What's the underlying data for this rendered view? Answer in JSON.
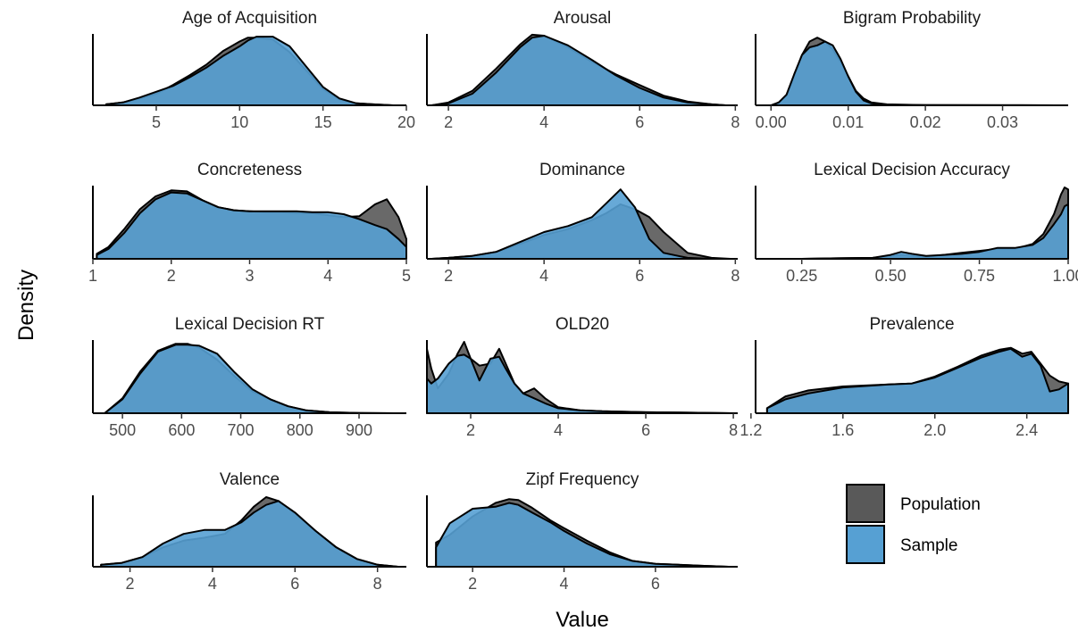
{
  "chart_data": {
    "type": "area",
    "kind": "faceted density plot",
    "xlabel": "Value",
    "ylabel": "Density",
    "legend": {
      "placement": "bottom-right",
      "entries": [
        {
          "name": "Population",
          "color": "#595959"
        },
        {
          "name": "Sample",
          "color": "#56a0d3"
        }
      ]
    },
    "series_colors": {
      "Population": "#595959",
      "Sample": "#56a0d3"
    },
    "series_opacity": 0.9,
    "facets": [
      {
        "title": "Age of Acquisition",
        "xlim": [
          1.2,
          20
        ],
        "ticks": [
          5,
          10,
          15,
          20
        ],
        "tick_labels": [
          "5",
          "10",
          "15",
          "20"
        ],
        "population": {
          "x": [
            2,
            3,
            4,
            5,
            6,
            7,
            8,
            9,
            10,
            10.5,
            11,
            12,
            13,
            14,
            15,
            16,
            17,
            18,
            19.2
          ],
          "y": [
            0.01,
            0.03,
            0.07,
            0.12,
            0.21,
            0.31,
            0.42,
            0.56,
            0.66,
            0.7,
            0.7,
            0.68,
            0.55,
            0.36,
            0.17,
            0.06,
            0.02,
            0.01,
            0.0
          ]
        },
        "sample": {
          "x": [
            2,
            3,
            4,
            5,
            6,
            7,
            8,
            9,
            10,
            10.5,
            11,
            12,
            13,
            14,
            15,
            16,
            17,
            18,
            19.2
          ],
          "y": [
            0.01,
            0.03,
            0.08,
            0.14,
            0.2,
            0.29,
            0.39,
            0.51,
            0.61,
            0.67,
            0.71,
            0.71,
            0.61,
            0.4,
            0.19,
            0.07,
            0.02,
            0.01,
            0.0
          ]
        }
      },
      {
        "title": "Arousal",
        "xlim": [
          1.55,
          8.05
        ],
        "ticks": [
          2,
          4,
          6,
          8
        ],
        "tick_labels": [
          "2",
          "4",
          "6",
          "8"
        ],
        "population": {
          "x": [
            1.65,
            2.0,
            2.5,
            3.0,
            3.5,
            3.75,
            4.0,
            4.5,
            5.0,
            5.5,
            6.0,
            6.5,
            7.0,
            7.5,
            7.8
          ],
          "y": [
            0.0,
            0.03,
            0.15,
            0.38,
            0.63,
            0.73,
            0.72,
            0.6,
            0.45,
            0.32,
            0.21,
            0.1,
            0.04,
            0.01,
            0.0
          ]
        },
        "sample": {
          "x": [
            1.65,
            2.0,
            2.5,
            3.0,
            3.5,
            3.75,
            4.0,
            4.5,
            5.0,
            5.5,
            6.0,
            6.5,
            7.0,
            7.5,
            7.8
          ],
          "y": [
            0.0,
            0.02,
            0.12,
            0.34,
            0.6,
            0.7,
            0.72,
            0.62,
            0.47,
            0.31,
            0.18,
            0.08,
            0.03,
            0.01,
            0.0
          ]
        }
      },
      {
        "title": "Bigram Probability",
        "xlim": [
          -0.002,
          0.0385
        ],
        "ticks": [
          0.0,
          0.01,
          0.02,
          0.03
        ],
        "tick_labels": [
          "0.00",
          "0.01",
          "0.02",
          "0.03"
        ],
        "population": {
          "x": [
            0.0,
            0.001,
            0.002,
            0.003,
            0.004,
            0.005,
            0.006,
            0.007,
            0.008,
            0.009,
            0.01,
            0.011,
            0.012,
            0.013,
            0.015,
            0.02,
            0.03,
            0.037
          ],
          "y": [
            0.0,
            0.03,
            0.1,
            0.3,
            0.52,
            0.66,
            0.7,
            0.66,
            0.58,
            0.45,
            0.3,
            0.15,
            0.07,
            0.03,
            0.01,
            0.003,
            0.001,
            0.0
          ]
        },
        "sample": {
          "x": [
            0.0,
            0.001,
            0.002,
            0.003,
            0.004,
            0.005,
            0.006,
            0.007,
            0.008,
            0.009,
            0.01,
            0.011,
            0.012,
            0.013,
            0.015,
            0.02,
            0.03,
            0.037
          ],
          "y": [
            0.0,
            0.03,
            0.11,
            0.32,
            0.52,
            0.6,
            0.62,
            0.66,
            0.62,
            0.48,
            0.3,
            0.14,
            0.05,
            0.02,
            0.005,
            0.002,
            0.001,
            0.0
          ]
        }
      },
      {
        "title": "Concreteness",
        "xlim": [
          1.0,
          5.0
        ],
        "ticks": [
          1,
          2,
          3,
          4,
          5
        ],
        "tick_labels": [
          "1",
          "2",
          "3",
          "4",
          "5"
        ],
        "population": {
          "x": [
            1.05,
            1.2,
            1.4,
            1.6,
            1.8,
            2.0,
            2.2,
            2.4,
            2.6,
            2.8,
            3.0,
            3.2,
            3.4,
            3.6,
            3.8,
            4.0,
            4.2,
            4.4,
            4.6,
            4.75,
            4.9,
            5.0
          ],
          "y": [
            0.05,
            0.12,
            0.3,
            0.5,
            0.63,
            0.69,
            0.68,
            0.59,
            0.52,
            0.49,
            0.48,
            0.47,
            0.47,
            0.46,
            0.46,
            0.44,
            0.42,
            0.43,
            0.55,
            0.6,
            0.42,
            0.2
          ]
        },
        "sample": {
          "x": [
            1.05,
            1.2,
            1.4,
            1.6,
            1.8,
            2.0,
            2.2,
            2.4,
            2.6,
            2.8,
            3.0,
            3.2,
            3.4,
            3.6,
            3.8,
            4.0,
            4.2,
            4.4,
            4.6,
            4.75,
            4.9,
            5.0
          ],
          "y": [
            0.04,
            0.1,
            0.26,
            0.46,
            0.6,
            0.67,
            0.66,
            0.59,
            0.52,
            0.49,
            0.48,
            0.48,
            0.48,
            0.48,
            0.47,
            0.47,
            0.45,
            0.4,
            0.34,
            0.3,
            0.2,
            0.12
          ]
        }
      },
      {
        "title": "Dominance",
        "xlim": [
          1.55,
          8.05
        ],
        "ticks": [
          2,
          4,
          6,
          8
        ],
        "tick_labels": [
          "2",
          "4",
          "6",
          "8"
        ],
        "population": {
          "x": [
            1.65,
            2.0,
            2.5,
            3.0,
            3.5,
            4.0,
            4.5,
            5.0,
            5.3,
            5.6,
            5.9,
            6.2,
            6.5,
            7.0,
            7.5,
            7.9
          ],
          "y": [
            0.0,
            0.01,
            0.03,
            0.07,
            0.15,
            0.24,
            0.3,
            0.39,
            0.46,
            0.55,
            0.5,
            0.42,
            0.27,
            0.06,
            0.01,
            0.0
          ]
        },
        "sample": {
          "x": [
            1.65,
            2.0,
            2.5,
            3.0,
            3.5,
            4.0,
            4.5,
            5.0,
            5.3,
            5.6,
            5.9,
            6.2,
            6.5,
            7.0,
            7.5,
            7.9
          ],
          "y": [
            0.0,
            0.01,
            0.03,
            0.07,
            0.17,
            0.27,
            0.33,
            0.42,
            0.56,
            0.7,
            0.52,
            0.2,
            0.06,
            0.01,
            0.0,
            0.0
          ]
        }
      },
      {
        "title": "Lexical Decision Accuracy",
        "xlim": [
          0.12,
          1.0
        ],
        "ticks": [
          0.25,
          0.5,
          0.75,
          1.0
        ],
        "tick_labels": [
          "0.25",
          "0.50",
          "0.75",
          "1.00"
        ],
        "population": {
          "x": [
            0.16,
            0.25,
            0.35,
            0.45,
            0.5,
            0.53,
            0.56,
            0.6,
            0.65,
            0.7,
            0.75,
            0.8,
            0.85,
            0.9,
            0.93,
            0.96,
            0.98,
            0.99,
            1.0
          ],
          "y": [
            0.0,
            0.0,
            0.005,
            0.01,
            0.03,
            0.04,
            0.03,
            0.02,
            0.04,
            0.06,
            0.08,
            0.1,
            0.1,
            0.15,
            0.25,
            0.45,
            0.65,
            0.72,
            0.7
          ]
        },
        "sample": {
          "x": [
            0.16,
            0.25,
            0.35,
            0.45,
            0.5,
            0.53,
            0.56,
            0.6,
            0.65,
            0.7,
            0.75,
            0.8,
            0.85,
            0.9,
            0.93,
            0.96,
            0.98,
            0.99,
            1.0
          ],
          "y": [
            0.0,
            0.0,
            0.005,
            0.01,
            0.04,
            0.07,
            0.05,
            0.03,
            0.04,
            0.05,
            0.07,
            0.11,
            0.11,
            0.14,
            0.21,
            0.35,
            0.45,
            0.53,
            0.55
          ]
        }
      },
      {
        "title": "Lexical Decision RT",
        "xlim": [
          450,
          980
        ],
        "ticks": [
          500,
          600,
          700,
          800,
          900
        ],
        "tick_labels": [
          "500",
          "600",
          "700",
          "800",
          "900"
        ],
        "population": {
          "x": [
            470,
            500,
            530,
            560,
            590,
            610,
            630,
            660,
            690,
            720,
            750,
            780,
            810,
            850,
            900,
            960
          ],
          "y": [
            0.0,
            0.15,
            0.42,
            0.63,
            0.7,
            0.7,
            0.66,
            0.54,
            0.37,
            0.22,
            0.14,
            0.07,
            0.03,
            0.01,
            0.003,
            0.0
          ]
        },
        "sample": {
          "x": [
            470,
            500,
            530,
            560,
            590,
            610,
            630,
            660,
            690,
            720,
            750,
            780,
            810,
            850,
            900,
            960
          ],
          "y": [
            0.0,
            0.14,
            0.4,
            0.62,
            0.69,
            0.69,
            0.68,
            0.6,
            0.41,
            0.24,
            0.14,
            0.07,
            0.03,
            0.01,
            0.003,
            0.0
          ]
        }
      },
      {
        "title": "OLD20",
        "xlim": [
          1.0,
          8.1
        ],
        "ticks": [
          2,
          4,
          6,
          8
        ],
        "tick_labels": [
          "2",
          "4",
          "6",
          "8"
        ],
        "population": {
          "x": [
            1.0,
            1.1,
            1.25,
            1.5,
            1.7,
            1.85,
            2.0,
            2.2,
            2.45,
            2.65,
            2.8,
            3.0,
            3.2,
            3.45,
            3.7,
            4.0,
            4.5,
            5.0,
            6.0,
            7.0,
            8.0
          ],
          "y": [
            0.65,
            0.45,
            0.25,
            0.4,
            0.6,
            0.72,
            0.55,
            0.48,
            0.5,
            0.65,
            0.5,
            0.3,
            0.2,
            0.25,
            0.15,
            0.06,
            0.03,
            0.02,
            0.01,
            0.005,
            0.0
          ]
        },
        "sample": {
          "x": [
            1.0,
            1.1,
            1.25,
            1.5,
            1.7,
            1.85,
            2.0,
            2.2,
            2.45,
            2.65,
            2.8,
            3.0,
            3.2,
            3.45,
            3.7,
            4.0,
            4.5,
            5.0,
            6.0,
            7.0,
            8.0
          ],
          "y": [
            0.35,
            0.3,
            0.35,
            0.5,
            0.58,
            0.59,
            0.55,
            0.33,
            0.55,
            0.57,
            0.45,
            0.3,
            0.2,
            0.15,
            0.1,
            0.05,
            0.03,
            0.02,
            0.01,
            0.005,
            0.0
          ]
        }
      },
      {
        "title": "Prevalence",
        "xlim": [
          1.22,
          2.58
        ],
        "ticks": [
          1.2,
          1.6,
          2.0,
          2.4
        ],
        "tick_labels": [
          "1.2",
          "1.6",
          "2.0",
          "2.4"
        ],
        "population": {
          "x": [
            1.27,
            1.35,
            1.45,
            1.6,
            1.8,
            1.9,
            2.0,
            2.1,
            2.2,
            2.28,
            2.33,
            2.38,
            2.42,
            2.46,
            2.5,
            2.54,
            2.58
          ],
          "y": [
            0.05,
            0.17,
            0.23,
            0.27,
            0.29,
            0.3,
            0.37,
            0.47,
            0.58,
            0.64,
            0.66,
            0.6,
            0.62,
            0.5,
            0.38,
            0.32,
            0.3
          ]
        },
        "sample": {
          "x": [
            1.27,
            1.35,
            1.45,
            1.6,
            1.8,
            1.9,
            2.0,
            2.1,
            2.2,
            2.28,
            2.33,
            2.38,
            2.42,
            2.46,
            2.5,
            2.54,
            2.58
          ],
          "y": [
            0.05,
            0.14,
            0.2,
            0.26,
            0.29,
            0.3,
            0.36,
            0.46,
            0.56,
            0.62,
            0.65,
            0.57,
            0.6,
            0.48,
            0.22,
            0.24,
            0.3
          ]
        }
      },
      {
        "title": "Valence",
        "xlim": [
          1.1,
          8.7
        ],
        "ticks": [
          2,
          4,
          6,
          8
        ],
        "tick_labels": [
          "2",
          "4",
          "6",
          "8"
        ],
        "population": {
          "x": [
            1.3,
            1.8,
            2.3,
            2.8,
            3.3,
            3.8,
            4.3,
            4.7,
            5.0,
            5.3,
            5.6,
            6.0,
            6.5,
            7.0,
            7.5,
            8.0,
            8.5
          ],
          "y": [
            0.02,
            0.04,
            0.1,
            0.2,
            0.27,
            0.3,
            0.34,
            0.48,
            0.62,
            0.72,
            0.68,
            0.55,
            0.37,
            0.2,
            0.08,
            0.02,
            0.0
          ]
        },
        "sample": {
          "x": [
            1.3,
            1.8,
            2.3,
            2.8,
            3.3,
            3.8,
            4.3,
            4.7,
            5.0,
            5.3,
            5.6,
            6.0,
            6.5,
            7.0,
            7.5,
            8.0,
            8.5
          ],
          "y": [
            0.02,
            0.04,
            0.1,
            0.24,
            0.34,
            0.38,
            0.38,
            0.46,
            0.56,
            0.64,
            0.68,
            0.56,
            0.37,
            0.2,
            0.08,
            0.02,
            0.0
          ]
        }
      },
      {
        "title": "Zipf Frequency",
        "xlim": [
          1.0,
          7.8
        ],
        "ticks": [
          2,
          4,
          6
        ],
        "tick_labels": [
          "2",
          "4",
          "6"
        ],
        "population": {
          "x": [
            1.2,
            1.5,
            2.0,
            2.5,
            2.8,
            3.0,
            3.3,
            3.7,
            4.0,
            4.5,
            5.0,
            5.5,
            6.0,
            6.5,
            7.0,
            7.6
          ],
          "y": [
            0.25,
            0.33,
            0.52,
            0.66,
            0.7,
            0.69,
            0.61,
            0.48,
            0.4,
            0.27,
            0.15,
            0.06,
            0.03,
            0.02,
            0.01,
            0.0
          ]
        },
        "sample": {
          "x": [
            1.2,
            1.5,
            2.0,
            2.5,
            2.8,
            3.0,
            3.3,
            3.7,
            4.0,
            4.5,
            5.0,
            5.5,
            6.0,
            6.5,
            7.0,
            7.6
          ],
          "y": [
            0.2,
            0.45,
            0.6,
            0.62,
            0.66,
            0.64,
            0.56,
            0.46,
            0.37,
            0.24,
            0.13,
            0.06,
            0.03,
            0.02,
            0.01,
            0.0
          ]
        }
      }
    ]
  }
}
